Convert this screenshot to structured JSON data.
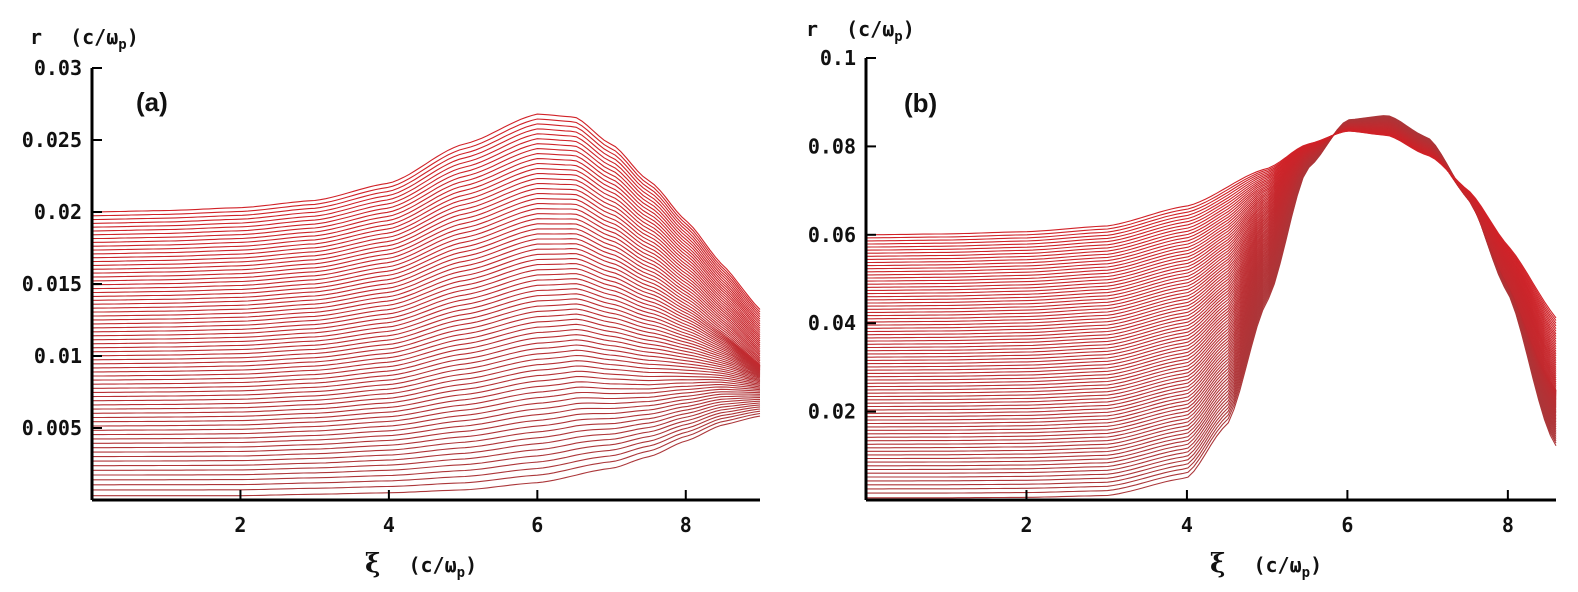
{
  "chart_data": [
    {
      "type": "line",
      "panel_label": "(a)",
      "ylabel_var": "r",
      "ylabel_unit_prefix": "(c/ω",
      "ylabel_unit_sub": "p",
      "ylabel_unit_suffix": ")",
      "xlabel_var": "ξ",
      "xlabel_unit_prefix": "(c/ω",
      "xlabel_unit_sub": "p",
      "xlabel_unit_suffix": ")",
      "xlim": [
        0,
        9
      ],
      "ylim": [
        0,
        0.03
      ],
      "xticks": [
        2,
        4,
        6,
        8
      ],
      "xtick_labels": [
        "2",
        "4",
        "6",
        "8"
      ],
      "yticks": [
        0.005,
        0.01,
        0.015,
        0.02,
        0.025,
        0.03
      ],
      "ytick_labels": [
        "0.005",
        "0.01",
        "0.015",
        "0.02",
        "0.025",
        "0.03"
      ],
      "grid": false,
      "curve_color_light": "#8a4a4a",
      "curve_color_dense": "#e8141c",
      "family": {
        "description_curves": 70,
        "initial_radius_range": [
          0.0,
          0.02
        ],
        "outer_curve": {
          "x": [
            0,
            1,
            2,
            3,
            4,
            5,
            6,
            6.5,
            7,
            7.5,
            8,
            8.5,
            9
          ],
          "y": [
            0.02,
            0.0201,
            0.0203,
            0.0208,
            0.022,
            0.0247,
            0.0268,
            0.0266,
            0.0247,
            0.0222,
            0.02,
            0.018,
            0.0163
          ]
        },
        "inner_curve": {
          "x": [
            0,
            1,
            2,
            3,
            4,
            5,
            6,
            7,
            7.5,
            8,
            8.5,
            9
          ],
          "y": [
            0.0003,
            0.0003,
            0.0003,
            0.0004,
            0.0005,
            0.0007,
            0.0012,
            0.0022,
            0.003,
            0.004,
            0.005,
            0.0055
          ]
        },
        "end_convergence_y": 0.0065
      }
    },
    {
      "type": "line",
      "panel_label": "(b)",
      "ylabel_var": "r",
      "ylabel_unit_prefix": "(c/ω",
      "ylabel_unit_sub": "p",
      "ylabel_unit_suffix": ")",
      "xlabel_var": "ξ",
      "xlabel_unit_prefix": "(c/ω",
      "xlabel_unit_sub": "p",
      "xlabel_unit_suffix": ")",
      "xlim": [
        0,
        8.6
      ],
      "ylim": [
        0,
        0.1
      ],
      "xticks": [
        2,
        4,
        6,
        8
      ],
      "xtick_labels": [
        "2",
        "4",
        "6",
        "8"
      ],
      "yticks": [
        0.02,
        0.04,
        0.06,
        0.08,
        0.1
      ],
      "ytick_labels": [
        "0.02",
        "0.04",
        "0.06",
        "0.08",
        "0.1"
      ],
      "grid": false,
      "curve_color_light": "#8a4a4a",
      "curve_color_dense": "#e8141c",
      "family": {
        "description_curves": 80,
        "initial_radius_range": [
          0.0,
          0.06
        ],
        "outer_curve": {
          "x": [
            0,
            1,
            2,
            3,
            4,
            5,
            5.5,
            6,
            6.5,
            7,
            7.5,
            8,
            8.6
          ],
          "y": [
            0.06,
            0.0602,
            0.0607,
            0.062,
            0.0665,
            0.075,
            0.0805,
            0.0835,
            0.0825,
            0.078,
            0.072,
            0.064,
            0.055
          ]
        },
        "inner_curve": {
          "x": [
            0,
            1,
            2,
            3,
            4,
            4.5,
            5,
            5.5,
            6,
            6.5,
            7,
            7.5,
            8,
            8.6
          ],
          "y": [
            0.0005,
            0.0005,
            0.0006,
            0.001,
            0.005,
            0.017,
            0.045,
            0.075,
            0.086,
            0.087,
            0.082,
            0.07,
            0.05,
            0.012
          ]
        },
        "end_convergence_y": 0.011
      }
    }
  ]
}
